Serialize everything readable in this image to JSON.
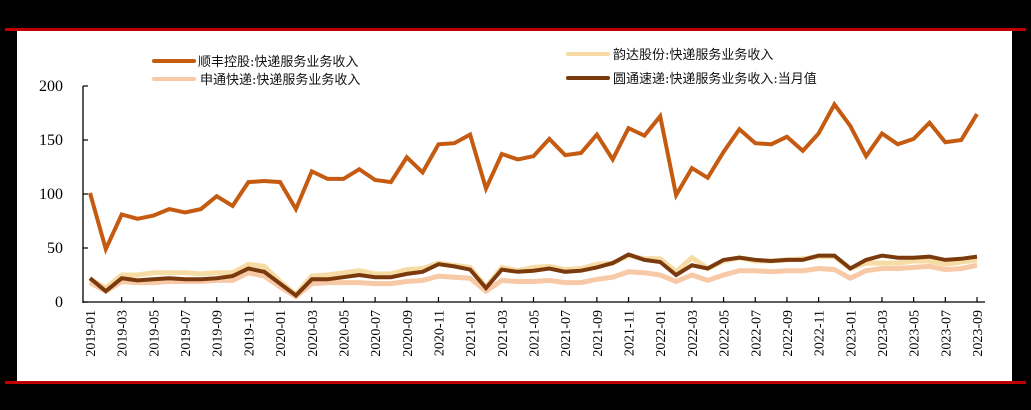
{
  "chart_data": {
    "type": "line",
    "title": "",
    "xlabel": "",
    "ylabel": "",
    "ylim": [
      0,
      200
    ],
    "yticks": [
      0,
      50,
      100,
      150,
      200
    ],
    "grid": false,
    "legend_position": "top",
    "x": [
      "2019-01",
      "2019-02",
      "2019-03",
      "2019-04",
      "2019-05",
      "2019-06",
      "2019-07",
      "2019-08",
      "2019-09",
      "2019-10",
      "2019-11",
      "2019-12",
      "2020-01",
      "2020-02",
      "2020-03",
      "2020-04",
      "2020-05",
      "2020-06",
      "2020-07",
      "2020-08",
      "2020-09",
      "2020-10",
      "2020-11",
      "2020-12",
      "2021-01",
      "2021-02",
      "2021-03",
      "2021-04",
      "2021-05",
      "2021-06",
      "2021-07",
      "2021-08",
      "2021-09",
      "2021-10",
      "2021-11",
      "2021-12",
      "2022-01",
      "2022-02",
      "2022-03",
      "2022-04",
      "2022-05",
      "2022-06",
      "2022-07",
      "2022-08",
      "2022-09",
      "2022-10",
      "2022-11",
      "2022-12",
      "2023-01",
      "2023-02",
      "2023-03",
      "2023-04",
      "2023-05",
      "2023-06",
      "2023-07",
      "2023-08",
      "2023-09"
    ],
    "xtick_labels": [
      "2019-01",
      "2019-03",
      "2019-05",
      "2019-07",
      "2019-09",
      "2019-11",
      "2020-01",
      "2020-03",
      "2020-05",
      "2020-07",
      "2020-09",
      "2020-11",
      "2021-01",
      "2021-03",
      "2021-05",
      "2021-07",
      "2021-09",
      "2021-11",
      "2022-01",
      "2022-03",
      "2022-05",
      "2022-07",
      "2022-09",
      "2022-11",
      "2023-01",
      "2023-03",
      "2023-05",
      "2023-07",
      "2023-09"
    ],
    "series": [
      {
        "name": "顺丰控股:快递服务业务收入",
        "color": "#c55a11",
        "width": 4,
        "values": [
          101,
          49,
          81,
          77,
          80,
          86,
          83,
          86,
          98,
          89,
          111,
          112,
          111,
          86,
          121,
          114,
          114,
          123,
          113,
          111,
          134,
          120,
          146,
          147,
          155,
          105,
          137,
          132,
          135,
          151,
          136,
          138,
          155,
          132,
          161,
          154,
          172,
          99,
          124,
          115,
          139,
          160,
          147,
          146,
          153,
          140,
          156,
          183,
          163,
          135,
          156,
          146,
          151,
          166,
          148,
          150,
          174
        ]
      },
      {
        "name": "韵达股份:快递服务业务收入",
        "color": "#f6dca4",
        "width": 5,
        "values": [
          21,
          13,
          25,
          25,
          27,
          27,
          27,
          26,
          27,
          27,
          35,
          33,
          19,
          7,
          24,
          25,
          27,
          29,
          26,
          26,
          30,
          31,
          36,
          34,
          32,
          14,
          32,
          29,
          32,
          33,
          30,
          31,
          35,
          36,
          43,
          40,
          40,
          28,
          41,
          31,
          38,
          41,
          38,
          38,
          39,
          40,
          42,
          42,
          31,
          36,
          36,
          36,
          38,
          38,
          35,
          37,
          39
        ]
      },
      {
        "name": "申通快递:快递服务业务收入",
        "color": "#f8c9a6",
        "width": 5,
        "values": [
          18,
          10,
          19,
          18,
          18,
          19,
          19,
          19,
          20,
          20,
          27,
          24,
          14,
          5,
          17,
          18,
          18,
          18,
          17,
          17,
          19,
          20,
          24,
          23,
          22,
          10,
          20,
          19,
          19,
          20,
          18,
          18,
          21,
          23,
          28,
          27,
          25,
          19,
          25,
          20,
          25,
          29,
          29,
          28,
          29,
          29,
          31,
          30,
          22,
          29,
          31,
          31,
          32,
          33,
          30,
          31,
          34
        ]
      },
      {
        "name": "圆通速递:快递服务业务收入:当月值",
        "color": "#7a3a0e",
        "width": 4,
        "values": [
          22,
          10,
          22,
          20,
          21,
          22,
          21,
          21,
          22,
          24,
          31,
          28,
          17,
          6,
          21,
          21,
          23,
          25,
          23,
          23,
          26,
          28,
          35,
          33,
          30,
          13,
          30,
          28,
          29,
          31,
          28,
          29,
          32,
          36,
          44,
          39,
          37,
          25,
          34,
          31,
          39,
          41,
          39,
          38,
          39,
          39,
          43,
          43,
          31,
          39,
          43,
          41,
          41,
          42,
          39,
          40,
          42
        ]
      }
    ]
  },
  "legend": {
    "items": [
      {
        "label": "顺丰控股:快递服务业务收入",
        "color": "#c55a11"
      },
      {
        "label": "申通快递:快递服务业务收入",
        "color": "#f8c9a6"
      },
      {
        "label": "韵达股份:快递服务业务收入",
        "color": "#f6dca4"
      },
      {
        "label": "圆通速递:快递服务业务收入:当月值",
        "color": "#7a3a0e"
      }
    ]
  },
  "axis": {
    "y_labels": [
      "0",
      "50",
      "100",
      "150",
      "200"
    ]
  }
}
